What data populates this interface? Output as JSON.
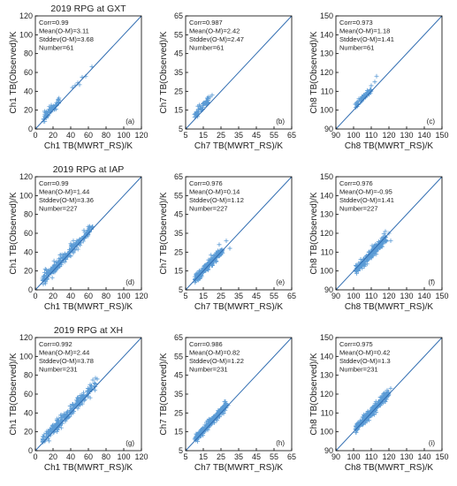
{
  "figure": {
    "colors": {
      "points": "#5b9bd5",
      "diagonal": "#2e6bb0",
      "axis": "#000000"
    },
    "rows": [
      {
        "title": "2019 RPG at GXT"
      },
      {
        "title": "2019 RPG at IAP"
      },
      {
        "title": "2019 RPG at XH"
      }
    ]
  },
  "chart_data": [
    {
      "type": "scatter",
      "title": "2019 RPG at GXT",
      "letter": "(a)",
      "xlabel": "Ch1 TB(MWRT_RS)/K",
      "ylabel": "Ch1 TB(Observed)/K",
      "xlim": [
        0,
        120
      ],
      "ylim": [
        0,
        120
      ],
      "xticks": [
        0,
        20,
        40,
        60,
        80,
        100,
        120
      ],
      "yticks": [
        0,
        20,
        40,
        60,
        80,
        100,
        120
      ],
      "stats": [
        "Corr=0.99",
        "Mean(O-M)=3.11",
        "Stddev(O-M)=3.68",
        "Number=61"
      ],
      "cluster": {
        "n": 61,
        "xrange": [
          9,
          27
        ],
        "offset": 3.11,
        "sd": 2.3
      },
      "extra_points": [
        [
          45,
          46
        ],
        [
          48,
          49
        ],
        [
          50,
          47
        ],
        [
          53,
          55
        ],
        [
          57,
          56
        ],
        [
          64,
          66
        ],
        [
          42,
          44
        ]
      ]
    },
    {
      "type": "scatter",
      "title": "",
      "letter": "(b)",
      "xlabel": "Ch7 TB(MWRT_RS)/K",
      "ylabel": "Ch7 TB(Observed)/K",
      "xlim": [
        5,
        65
      ],
      "ylim": [
        5,
        65
      ],
      "xticks": [
        5,
        15,
        25,
        35,
        45,
        55,
        65
      ],
      "yticks": [
        5,
        15,
        25,
        35,
        45,
        55,
        65
      ],
      "stats": [
        "Corr=0.987",
        "Mean(O-M)=2.42",
        "Stddev(O-M)=2.47",
        "Number=61"
      ],
      "cluster": {
        "n": 61,
        "xrange": [
          10,
          18
        ],
        "offset": 2.42,
        "sd": 1.0
      },
      "extra_points": [
        [
          18,
          22
        ],
        [
          19,
          22
        ],
        [
          20,
          23
        ]
      ]
    },
    {
      "type": "scatter",
      "title": "",
      "letter": "(c)",
      "xlabel": "Ch8 TB(MWRT_RS)/K",
      "ylabel": "Ch8 TB(Observed)/K",
      "xlim": [
        90,
        150
      ],
      "ylim": [
        90,
        150
      ],
      "xticks": [
        90,
        100,
        110,
        120,
        130,
        140,
        150
      ],
      "yticks": [
        90,
        100,
        110,
        120,
        130,
        140,
        150
      ],
      "stats": [
        "Corr=0.973",
        "Mean(O-M)=1.18",
        "Stddev(O-M)=1.41",
        "Number=61"
      ],
      "cluster": {
        "n": 61,
        "xrange": [
          101,
          110
        ],
        "offset": 1.18,
        "sd": 1.0
      },
      "extra_points": [
        [
          112,
          115
        ],
        [
          113,
          118
        ],
        [
          110,
          113
        ]
      ]
    },
    {
      "type": "scatter",
      "title": "2019 RPG at IAP",
      "letter": "(d)",
      "xlabel": "Ch1 TB(MWRT_RS)/K",
      "ylabel": "Ch1 TB(Observed)/K",
      "xlim": [
        0,
        120
      ],
      "ylim": [
        0,
        120
      ],
      "xticks": [
        0,
        20,
        40,
        60,
        80,
        100,
        120
      ],
      "yticks": [
        0,
        20,
        40,
        60,
        80,
        100,
        120
      ],
      "stats": [
        "Corr=0.99",
        "Mean(O-M)=1.44",
        "Stddev(O-M)=3.36",
        "Number=227"
      ],
      "cluster": {
        "n": 227,
        "xrange": [
          8,
          65
        ],
        "offset": 1.44,
        "sd": 2.8
      },
      "extra_points": [
        [
          40,
          49
        ],
        [
          43,
          52
        ],
        [
          55,
          63
        ],
        [
          60,
          67
        ]
      ]
    },
    {
      "type": "scatter",
      "title": "",
      "letter": "(e)",
      "xlabel": "Ch7 TB(MWRT_RS)/K",
      "ylabel": "Ch7 TB(Observed)/K",
      "xlim": [
        5,
        65
      ],
      "ylim": [
        5,
        65
      ],
      "xticks": [
        5,
        15,
        25,
        35,
        45,
        55,
        65
      ],
      "yticks": [
        5,
        15,
        25,
        35,
        45,
        55,
        65
      ],
      "stats": [
        "Corr=0.976",
        "Mean(O-M)=0.14",
        "Stddev(O-M)=1.12",
        "Number=227"
      ],
      "cluster": {
        "n": 227,
        "xrange": [
          10,
          26
        ],
        "offset": 0.14,
        "sd": 1.0
      },
      "extra_points": [
        [
          28,
          31
        ],
        [
          30,
          27
        ],
        [
          24,
          29
        ]
      ]
    },
    {
      "type": "scatter",
      "title": "",
      "letter": "(f)",
      "xlabel": "Ch8 TB(MWRT_RS)/K",
      "ylabel": "Ch8 TB(Observed)/K",
      "xlim": [
        90,
        150
      ],
      "ylim": [
        90,
        150
      ],
      "xticks": [
        90,
        100,
        110,
        120,
        130,
        140,
        150
      ],
      "yticks": [
        90,
        100,
        110,
        120,
        130,
        140,
        150
      ],
      "stats": [
        "Corr=0.976",
        "Mean(O-M)=-0.95",
        "Stddev(O-M)=1.41",
        "Number=227"
      ],
      "cluster": {
        "n": 227,
        "xrange": [
          101,
          119
        ],
        "offset": -0.95,
        "sd": 1.2
      },
      "extra_points": [
        [
          120,
          120
        ],
        [
          118,
          121
        ],
        [
          121,
          116
        ]
      ]
    },
    {
      "type": "scatter",
      "title": "2019 RPG at XH",
      "letter": "(g)",
      "xlabel": "Ch1 TB(MWRT_RS)/K",
      "ylabel": "Ch1 TB(Observed)/K",
      "xlim": [
        0,
        120
      ],
      "ylim": [
        0,
        120
      ],
      "xticks": [
        0,
        20,
        40,
        60,
        80,
        100,
        120
      ],
      "yticks": [
        0,
        20,
        40,
        60,
        80,
        100,
        120
      ],
      "stats": [
        "Corr=0.992",
        "Mean(O-M)=2.44",
        "Stddev(O-M)=3.78",
        "Number=231"
      ],
      "cluster": {
        "n": 231,
        "xrange": [
          8,
          68
        ],
        "offset": 2.44,
        "sd": 3.0
      },
      "extra_points": [
        [
          65,
          75
        ],
        [
          68,
          77
        ],
        [
          70,
          76
        ],
        [
          62,
          70
        ]
      ]
    },
    {
      "type": "scatter",
      "title": "",
      "letter": "(h)",
      "xlabel": "Ch7 TB(MWRT_RS)/K",
      "ylabel": "Ch7 TB(Observed)/K",
      "xlim": [
        5,
        65
      ],
      "ylim": [
        5,
        65
      ],
      "xticks": [
        5,
        15,
        25,
        35,
        45,
        55,
        65
      ],
      "yticks": [
        5,
        15,
        25,
        35,
        45,
        55,
        65
      ],
      "stats": [
        "Corr=0.986",
        "Mean(O-M)=0.82",
        "Stddev(O-M)=1.22",
        "Number=231"
      ],
      "cluster": {
        "n": 231,
        "xrange": [
          10,
          28
        ],
        "offset": 0.82,
        "sd": 1.0
      },
      "extra_points": [
        [
          28,
          30
        ],
        [
          29,
          29
        ],
        [
          27,
          31
        ]
      ]
    },
    {
      "type": "scatter",
      "title": "",
      "letter": "(i)",
      "xlabel": "Ch8 TB(MWRT_RS)/K",
      "ylabel": "Ch8 TB(Observed)/K",
      "xlim": [
        90,
        150
      ],
      "ylim": [
        90,
        150
      ],
      "xticks": [
        90,
        100,
        110,
        120,
        130,
        140,
        150
      ],
      "yticks": [
        90,
        100,
        110,
        120,
        130,
        140,
        150
      ],
      "stats": [
        "Corr=0.975",
        "Mean(O-M)=0.42",
        "Stddev(O-M)=1.3",
        "Number=231"
      ],
      "cluster": {
        "n": 231,
        "xrange": [
          101,
          120
        ],
        "offset": 0.42,
        "sd": 1.2
      },
      "extra_points": [
        [
          121,
          123
        ],
        [
          119,
          122
        ],
        [
          118,
          116
        ]
      ]
    }
  ]
}
